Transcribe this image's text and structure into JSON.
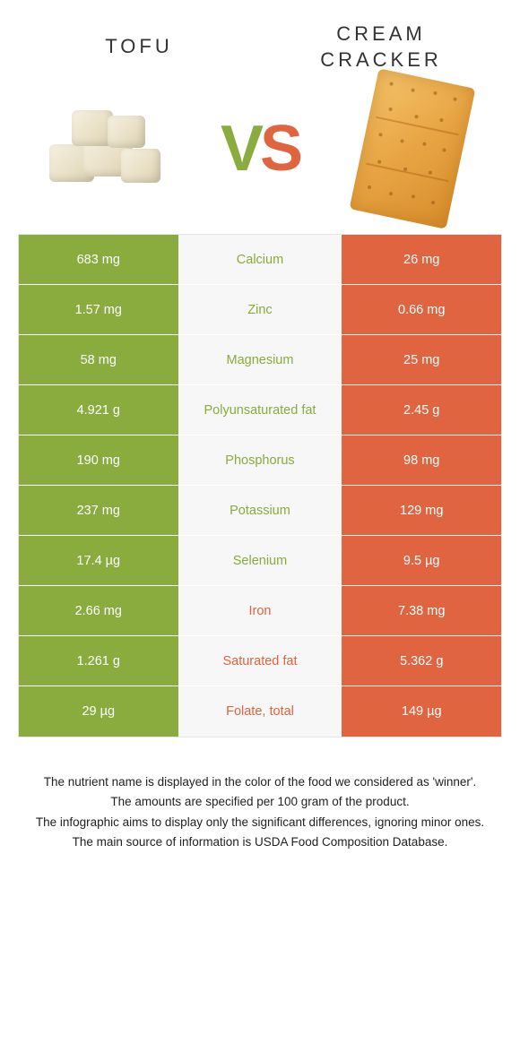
{
  "header": {
    "left_title": "Tofu",
    "right_title": "Cream Cracker",
    "vs_v": "V",
    "vs_s": "S"
  },
  "colors": {
    "green": "#8aab3d",
    "orange": "#e0643f",
    "mid_bg": "#f7f7f7",
    "border": "#e5e5e5"
  },
  "rows": [
    {
      "left": "683 mg",
      "name": "Calcium",
      "right": "26 mg",
      "winner": "green"
    },
    {
      "left": "1.57 mg",
      "name": "Zinc",
      "right": "0.66 mg",
      "winner": "green"
    },
    {
      "left": "58 mg",
      "name": "Magnesium",
      "right": "25 mg",
      "winner": "green"
    },
    {
      "left": "4.921 g",
      "name": "Polyunsaturated fat",
      "right": "2.45 g",
      "winner": "green"
    },
    {
      "left": "190 mg",
      "name": "Phosphorus",
      "right": "98 mg",
      "winner": "green"
    },
    {
      "left": "237 mg",
      "name": "Potassium",
      "right": "129 mg",
      "winner": "green"
    },
    {
      "left": "17.4 µg",
      "name": "Selenium",
      "right": "9.5 µg",
      "winner": "green"
    },
    {
      "left": "2.66 mg",
      "name": "Iron",
      "right": "7.38 mg",
      "winner": "orange"
    },
    {
      "left": "1.261 g",
      "name": "Saturated fat",
      "right": "5.362 g",
      "winner": "orange"
    },
    {
      "left": "29 µg",
      "name": "Folate, total",
      "right": "149 µg",
      "winner": "orange"
    }
  ],
  "footer": {
    "line1": "The nutrient name is displayed in the color of the food we considered as 'winner'.",
    "line2": "The amounts are specified per 100 gram of the product.",
    "line3": "The infographic aims to display only the significant differences, ignoring minor ones.",
    "line4": "The main source of information is USDA Food Composition Database."
  }
}
